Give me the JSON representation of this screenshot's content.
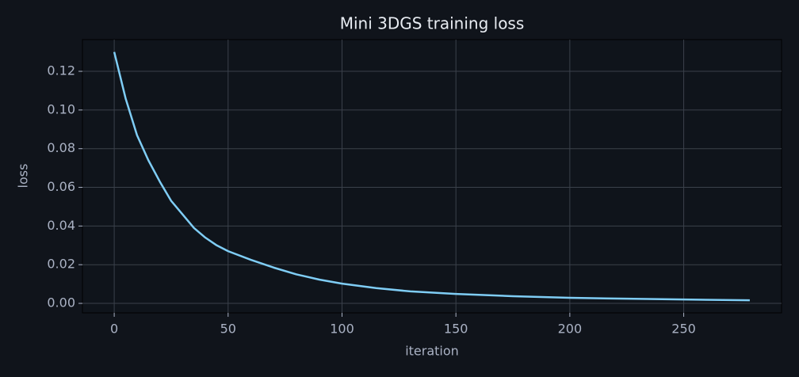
{
  "chart_data": {
    "type": "line",
    "title": "Mini 3DGS training loss",
    "x_label": "iteration",
    "y_label": "loss",
    "x": [
      0,
      5,
      10,
      15,
      20,
      25,
      30,
      35,
      40,
      45,
      50,
      60,
      70,
      80,
      90,
      100,
      115,
      130,
      150,
      175,
      200,
      225,
      250,
      279
    ],
    "series": [
      {
        "color": "#7fcdf5",
        "values": [
          0.13,
          0.106,
          0.087,
          0.074,
          0.063,
          0.053,
          0.046,
          0.039,
          0.034,
          0.03,
          0.027,
          0.0225,
          0.0185,
          0.015,
          0.0123,
          0.0102,
          0.0079,
          0.0062,
          0.0049,
          0.0037,
          0.0029,
          0.0024,
          0.002,
          0.0016
        ]
      }
    ],
    "xlim": [
      -13.95,
      292.95
    ],
    "xticks": [
      0,
      50,
      100,
      150,
      200,
      250
    ],
    "ylim": [
      -0.0049,
      0.1364
    ],
    "yticks": [
      {
        "value": 0,
        "label": "0.00"
      },
      {
        "value": 0.02,
        "label": "0.02"
      },
      {
        "value": 0.04,
        "label": "0.04"
      },
      {
        "value": 0.06,
        "label": "0.06"
      },
      {
        "value": 0.08,
        "label": "0.08"
      },
      {
        "value": 0.1,
        "label": "0.10"
      },
      {
        "value": 0.12,
        "label": "0.12"
      }
    ],
    "grid": true
  }
}
